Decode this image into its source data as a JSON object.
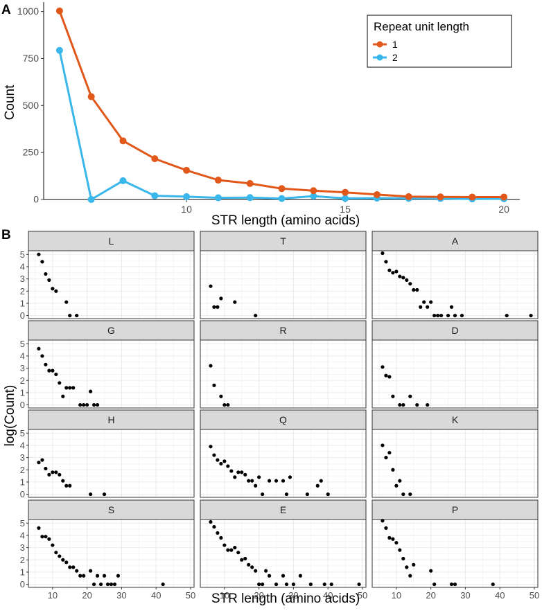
{
  "panel_a_label": "A",
  "panel_b_label": "B",
  "colors": {
    "series1": "#E1581A",
    "series2": "#39B6EA",
    "strip_bg": "#D9D9D9",
    "grid": "#EBEBEB",
    "point": "#000000"
  },
  "chart_data": [
    {
      "type": "line",
      "id": "panel-a",
      "title": "",
      "xlabel": "STR length (amino acids)",
      "ylabel": "Count",
      "xlim": [
        5.5,
        20.5
      ],
      "ylim": [
        0,
        1050
      ],
      "xticks": [
        10,
        15,
        20
      ],
      "yticks": [
        0,
        250,
        500,
        750,
        1000
      ],
      "legend": {
        "title": "Repeat unit length",
        "position": "top-right"
      },
      "x": [
        6,
        7,
        8,
        9,
        10,
        11,
        12,
        13,
        14,
        15,
        16,
        17,
        18,
        19,
        20
      ],
      "series": [
        {
          "name": "1",
          "values": [
            1003,
            547,
            312,
            217,
            155,
            103,
            85,
            58,
            47,
            38,
            26,
            15,
            14,
            13,
            13
          ]
        },
        {
          "name": "2",
          "values": [
            793,
            0,
            100,
            20,
            15,
            9,
            10,
            5,
            18,
            6,
            7,
            6,
            5,
            3,
            4
          ]
        }
      ]
    },
    {
      "type": "scatter",
      "id": "panel-b",
      "xlabel": "STR length (amino acids)",
      "ylabel": "log(Count)",
      "xlim": [
        3,
        51
      ],
      "ylim": [
        -0.25,
        5.3
      ],
      "xticks": [
        10,
        20,
        30,
        40,
        50
      ],
      "yticks": [
        0,
        1,
        2,
        3,
        4,
        5
      ],
      "facets": [
        {
          "label": "L",
          "x": [
            6,
            7,
            8,
            9,
            10,
            11,
            14,
            15,
            17
          ],
          "y": [
            5.0,
            4.4,
            3.4,
            2.9,
            2.2,
            2.0,
            1.1,
            0,
            0
          ]
        },
        {
          "label": "T",
          "x": [
            6,
            7,
            8,
            9,
            13,
            19
          ],
          "y": [
            2.4,
            0.7,
            0.7,
            1.4,
            1.1,
            0
          ]
        },
        {
          "label": "A",
          "x": [
            6,
            7,
            8,
            9,
            10,
            11,
            12,
            13,
            14,
            15,
            16,
            17,
            18,
            19,
            20,
            21,
            22,
            23,
            25,
            26,
            27,
            29,
            42,
            49
          ],
          "y": [
            5.1,
            4.4,
            3.7,
            3.5,
            3.6,
            3.2,
            3.1,
            2.9,
            2.6,
            2.1,
            2.1,
            0.7,
            1.1,
            0.7,
            1.1,
            0,
            0,
            0,
            0,
            0.7,
            0,
            0,
            0,
            0
          ]
        },
        {
          "label": "G",
          "x": [
            6,
            7,
            8,
            9,
            10,
            11,
            12,
            13,
            14,
            15,
            16,
            18,
            19,
            20,
            21,
            22,
            23
          ],
          "y": [
            4.6,
            4.0,
            3.3,
            2.8,
            2.8,
            2.5,
            1.8,
            0.7,
            1.4,
            1.4,
            1.4,
            0,
            0,
            0,
            1.1,
            0,
            0
          ]
        },
        {
          "label": "R",
          "x": [
            6,
            7,
            9,
            10,
            11
          ],
          "y": [
            3.2,
            1.6,
            0.7,
            0,
            0
          ]
        },
        {
          "label": "D",
          "x": [
            6,
            7,
            8,
            9,
            11,
            12,
            14,
            16,
            19
          ],
          "y": [
            3.1,
            2.4,
            2.3,
            0.7,
            0,
            0,
            0.7,
            0,
            0
          ]
        },
        {
          "label": "H",
          "x": [
            6,
            7,
            8,
            9,
            10,
            11,
            12,
            13,
            14,
            15,
            21,
            25
          ],
          "y": [
            2.6,
            2.8,
            2.1,
            1.6,
            1.8,
            1.8,
            1.6,
            1.1,
            0.7,
            0.7,
            0,
            0
          ]
        },
        {
          "label": "Q",
          "x": [
            6,
            7,
            8,
            9,
            10,
            11,
            12,
            13,
            14,
            15,
            16,
            17,
            18,
            19,
            20,
            21,
            23,
            25,
            27,
            28,
            29,
            34,
            37,
            38,
            40
          ],
          "y": [
            3.9,
            3.2,
            2.8,
            2.5,
            2.7,
            2.3,
            1.9,
            1.4,
            1.8,
            1.8,
            1.6,
            1.1,
            1.1,
            0.7,
            1.4,
            0,
            1.1,
            1.1,
            1.1,
            0,
            1.4,
            0,
            0.7,
            1.1,
            0
          ]
        },
        {
          "label": "K",
          "x": [
            6,
            7,
            8,
            9,
            10,
            11,
            12,
            14
          ],
          "y": [
            4.0,
            3.0,
            3.4,
            2.0,
            0.7,
            1.1,
            0,
            0
          ]
        },
        {
          "label": "S",
          "x": [
            6,
            7,
            8,
            9,
            10,
            11,
            12,
            13,
            14,
            15,
            16,
            17,
            18,
            19,
            21,
            22,
            23,
            24,
            25,
            26,
            27,
            28,
            29,
            42
          ],
          "y": [
            4.6,
            3.9,
            3.9,
            3.7,
            3.2,
            2.6,
            2.3,
            2.0,
            1.8,
            1.4,
            1.4,
            1.1,
            0.7,
            0.7,
            1.1,
            0,
            0.7,
            0,
            0.7,
            0,
            0,
            0,
            0.7,
            0
          ]
        },
        {
          "label": "E",
          "x": [
            6,
            7,
            8,
            9,
            10,
            11,
            12,
            13,
            14,
            15,
            16,
            17,
            18,
            19,
            20,
            21,
            22,
            23,
            25,
            27,
            28,
            30,
            32,
            35,
            39,
            41,
            49
          ],
          "y": [
            5.1,
            4.7,
            4.2,
            3.8,
            3.2,
            2.8,
            2.8,
            3.0,
            2.6,
            2.0,
            2.1,
            1.6,
            1.4,
            1.1,
            0,
            0,
            1.1,
            0.7,
            0,
            0.7,
            0,
            0,
            0.7,
            0,
            0,
            0,
            0
          ]
        },
        {
          "label": "P",
          "x": [
            6,
            7,
            8,
            9,
            10,
            11,
            12,
            13,
            14,
            15,
            20,
            21,
            26,
            27,
            38
          ],
          "y": [
            5.2,
            4.6,
            3.8,
            3.7,
            3.4,
            2.8,
            2.1,
            1.4,
            0.7,
            1.6,
            1.1,
            0,
            0,
            0,
            0
          ]
        }
      ]
    }
  ]
}
